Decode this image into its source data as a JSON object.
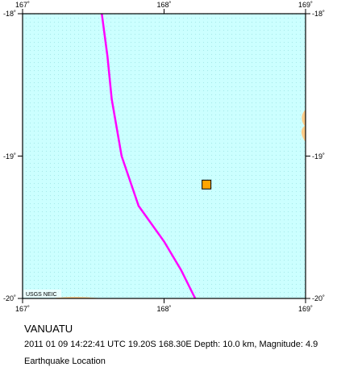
{
  "map": {
    "region": "VANUATU",
    "event_line": "2011 01 09 14:22:41 UTC 19.20S 168.30E Depth: 10.0 km, Magnitude: 4.9",
    "map_type": "Earthquake Location",
    "credit": "USGS NEIC",
    "lon_ticks": [
      "167˚",
      "168˚",
      "169˚"
    ],
    "lat_ticks": [
      "-18˚",
      "-19˚",
      "-20˚"
    ],
    "extent": {
      "lon_min": 167,
      "lon_max": 169,
      "lat_min": -20,
      "lat_max": -18
    },
    "epicenter": {
      "lat": -19.2,
      "lon": 168.3,
      "marker": "square",
      "color": "#ffa500"
    },
    "plate_boundary": {
      "color": "#ff00ff",
      "points": [
        [
          167.56,
          -18.0
        ],
        [
          167.6,
          -18.3
        ],
        [
          167.63,
          -18.6
        ],
        [
          167.7,
          -19.0
        ],
        [
          167.82,
          -19.35
        ],
        [
          168.0,
          -19.6
        ],
        [
          168.12,
          -19.8
        ],
        [
          168.22,
          -20.0
        ]
      ]
    },
    "land": {
      "color": "#ffcc88",
      "label": ""
    },
    "colors": {
      "ocean": "#ccffff",
      "ocean_dots": "#a6eaea",
      "frame": "#000000"
    }
  }
}
